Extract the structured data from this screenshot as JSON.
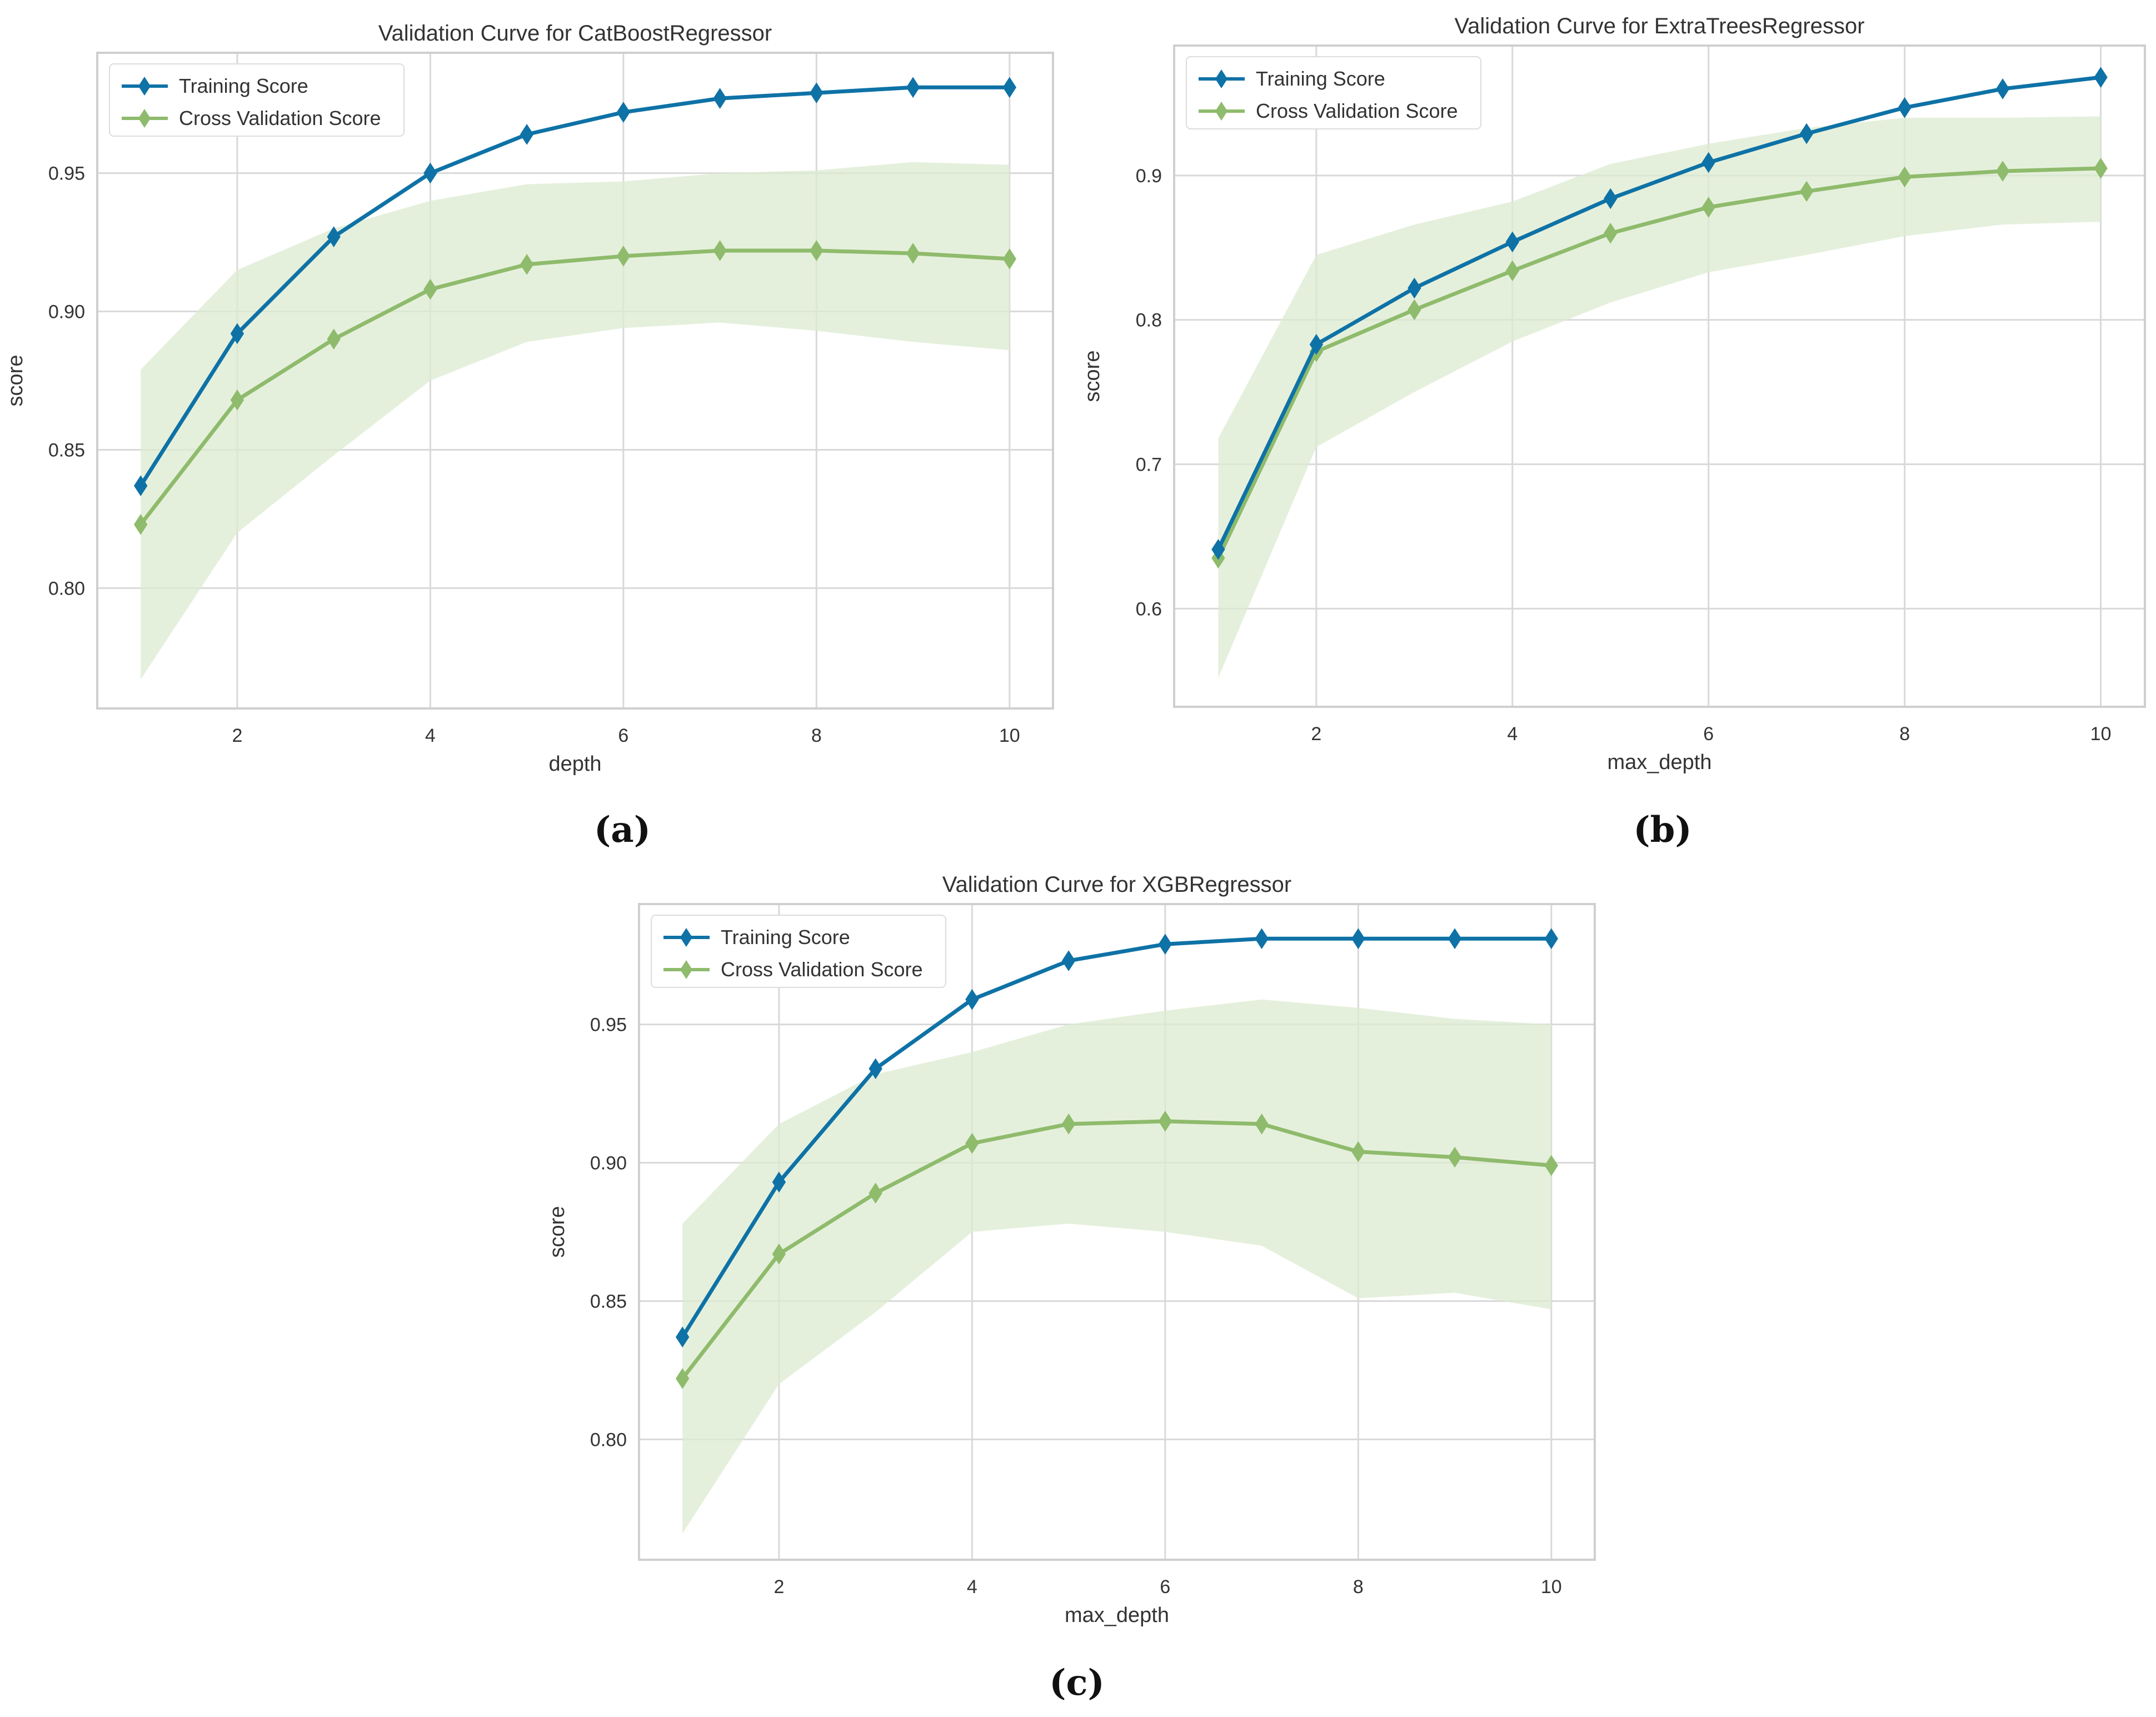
{
  "colors": {
    "training": "#0e72a6",
    "cv": "#8fbb6c",
    "band": "#dcebd0"
  },
  "chart_data": [
    {
      "type": "line",
      "caption": "(a)",
      "title": "Validation Curve for CatBoostRegressor",
      "xlabel": "depth",
      "ylabel": "score",
      "x": [
        1,
        2,
        3,
        4,
        5,
        6,
        7,
        8,
        9,
        10
      ],
      "xlim": [
        0.55,
        10.45
      ],
      "ylim": [
        0.7565,
        0.9935
      ],
      "xticks": [
        2,
        4,
        6,
        8,
        10
      ],
      "xtick_labels": [
        "2",
        "4",
        "6",
        "8",
        "10"
      ],
      "yticks": [
        0.8,
        0.85,
        0.9,
        0.95
      ],
      "ytick_labels": [
        "0.80",
        "0.85",
        "0.90",
        "0.95"
      ],
      "grid": true,
      "legend": "top-left",
      "series": [
        {
          "name": "Training Score",
          "values": [
            0.837,
            0.892,
            0.927,
            0.95,
            0.964,
            0.972,
            0.977,
            0.979,
            0.981,
            0.981
          ]
        },
        {
          "name": "Cross Validation Score",
          "values": [
            0.823,
            0.868,
            0.89,
            0.908,
            0.917,
            0.92,
            0.922,
            0.922,
            0.921,
            0.919
          ],
          "band_low": [
            0.767,
            0.82,
            0.848,
            0.875,
            0.889,
            0.894,
            0.896,
            0.893,
            0.889,
            0.886
          ],
          "band_high": [
            0.879,
            0.915,
            0.93,
            0.94,
            0.946,
            0.947,
            0.95,
            0.951,
            0.954,
            0.953
          ]
        }
      ]
    },
    {
      "type": "line",
      "caption": "(b)",
      "title": "Validation Curve for ExtraTreesRegressor",
      "xlabel": "max_depth",
      "ylabel": "score",
      "x": [
        1,
        2,
        3,
        4,
        5,
        6,
        7,
        8,
        9,
        10
      ],
      "xlim": [
        0.55,
        10.45
      ],
      "ylim": [
        0.532,
        0.99
      ],
      "xticks": [
        2,
        4,
        6,
        8,
        10
      ],
      "xtick_labels": [
        "2",
        "4",
        "6",
        "8",
        "10"
      ],
      "yticks": [
        0.6,
        0.7,
        0.8,
        0.9
      ],
      "ytick_labels": [
        "0.6",
        "0.7",
        "0.8",
        "0.9"
      ],
      "grid": true,
      "legend": "top-left",
      "series": [
        {
          "name": "Training Score",
          "values": [
            0.641,
            0.783,
            0.822,
            0.854,
            0.884,
            0.909,
            0.929,
            0.947,
            0.96,
            0.968
          ]
        },
        {
          "name": "Cross Validation Score",
          "values": [
            0.635,
            0.778,
            0.807,
            0.834,
            0.86,
            0.878,
            0.889,
            0.899,
            0.903,
            0.905
          ],
          "band_low": [
            0.552,
            0.712,
            0.75,
            0.785,
            0.812,
            0.833,
            0.845,
            0.858,
            0.866,
            0.868
          ],
          "band_high": [
            0.718,
            0.845,
            0.866,
            0.882,
            0.908,
            0.922,
            0.933,
            0.94,
            0.94,
            0.941
          ]
        }
      ]
    },
    {
      "type": "line",
      "caption": "(c)",
      "title": "Validation Curve for XGBRegressor",
      "xlabel": "max_depth",
      "ylabel": "score",
      "x": [
        1,
        2,
        3,
        4,
        5,
        6,
        7,
        8,
        9,
        10
      ],
      "xlim": [
        0.55,
        10.45
      ],
      "ylim": [
        0.7565,
        0.9935
      ],
      "xticks": [
        2,
        4,
        6,
        8,
        10
      ],
      "xtick_labels": [
        "2",
        "4",
        "6",
        "8",
        "10"
      ],
      "yticks": [
        0.8,
        0.85,
        0.9,
        0.95
      ],
      "ytick_labels": [
        "0.80",
        "0.85",
        "0.90",
        "0.95"
      ],
      "grid": true,
      "legend": "top-left",
      "series": [
        {
          "name": "Training Score",
          "values": [
            0.837,
            0.893,
            0.934,
            0.959,
            0.973,
            0.979,
            0.981,
            0.981,
            0.981,
            0.981
          ]
        },
        {
          "name": "Cross Validation Score",
          "values": [
            0.822,
            0.867,
            0.889,
            0.907,
            0.914,
            0.915,
            0.914,
            0.904,
            0.902,
            0.899
          ],
          "band_low": [
            0.766,
            0.82,
            0.846,
            0.875,
            0.878,
            0.875,
            0.87,
            0.851,
            0.853,
            0.847
          ],
          "band_high": [
            0.878,
            0.914,
            0.932,
            0.94,
            0.95,
            0.955,
            0.959,
            0.956,
            0.952,
            0.95
          ]
        }
      ]
    }
  ]
}
